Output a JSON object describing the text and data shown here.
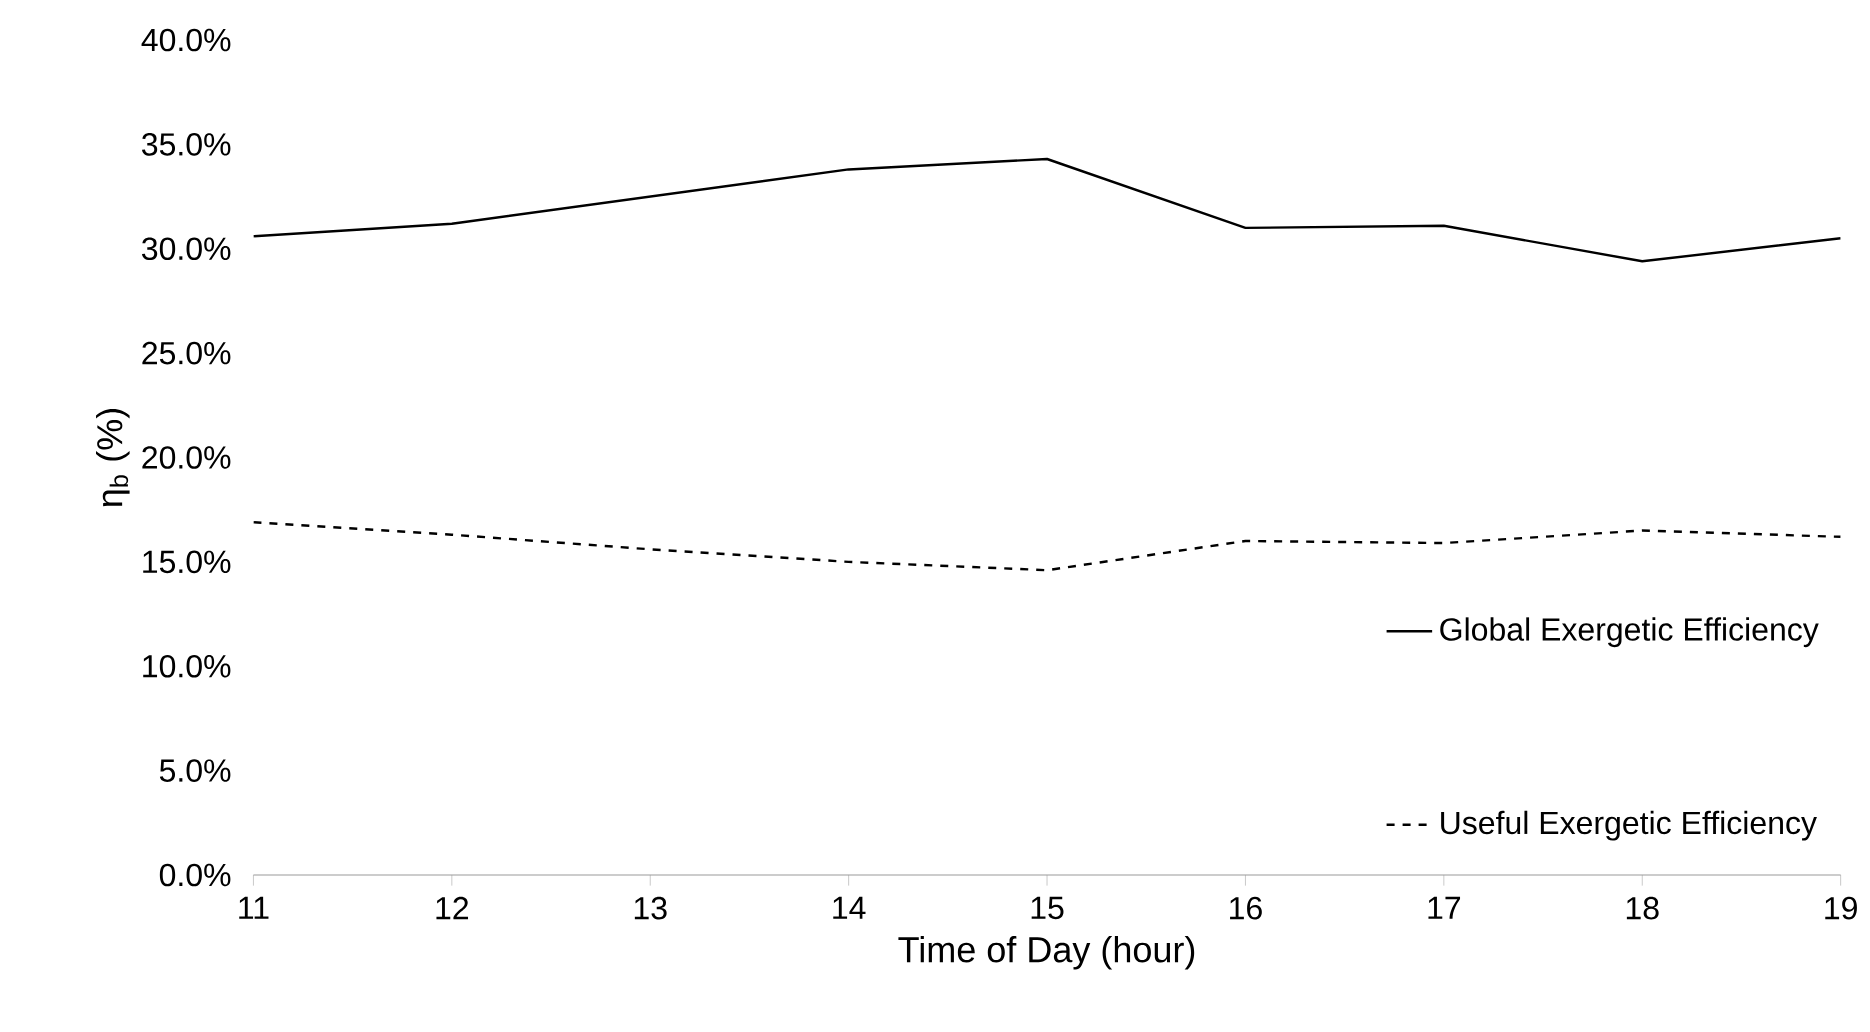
{
  "chart_data": {
    "type": "line",
    "xlabel": "Time of Day (hour)",
    "ylabel": "η$_{b}$ (%)",
    "x": [
      11,
      12,
      13,
      14,
      15,
      16,
      17,
      18,
      19
    ],
    "series": [
      {
        "name": "Global Exergetic Efficiency",
        "color": "#000000",
        "line_style": "solid",
        "values": [
          30.6,
          31.2,
          32.5,
          33.8,
          34.3,
          31.0,
          31.1,
          29.4,
          30.5
        ]
      },
      {
        "name": "Useful Exergetic Efficiency",
        "color": "#000000",
        "line_style": "dashed",
        "values": [
          16.9,
          16.3,
          15.6,
          15.0,
          14.6,
          16.0,
          15.9,
          16.5,
          16.2
        ]
      }
    ],
    "xlim": [
      11,
      19
    ],
    "xticks": [
      11,
      12,
      13,
      14,
      15,
      16,
      17,
      18,
      19
    ],
    "ylim": [
      0,
      40
    ],
    "yticks": [
      {
        "value": 0,
        "label": "0.0%"
      },
      {
        "value": 5,
        "label": "5.0%"
      },
      {
        "value": 10,
        "label": "10.0%"
      },
      {
        "value": 15,
        "label": "15.0%"
      },
      {
        "value": 20,
        "label": "20.0%"
      },
      {
        "value": 25,
        "label": "25.0%"
      },
      {
        "value": 30,
        "label": "30.0%"
      },
      {
        "value": 35,
        "label": "35.0%"
      },
      {
        "value": 40,
        "label": "40.0%"
      }
    ],
    "grid": false,
    "legend": "bottom right",
    "marker": "none"
  }
}
